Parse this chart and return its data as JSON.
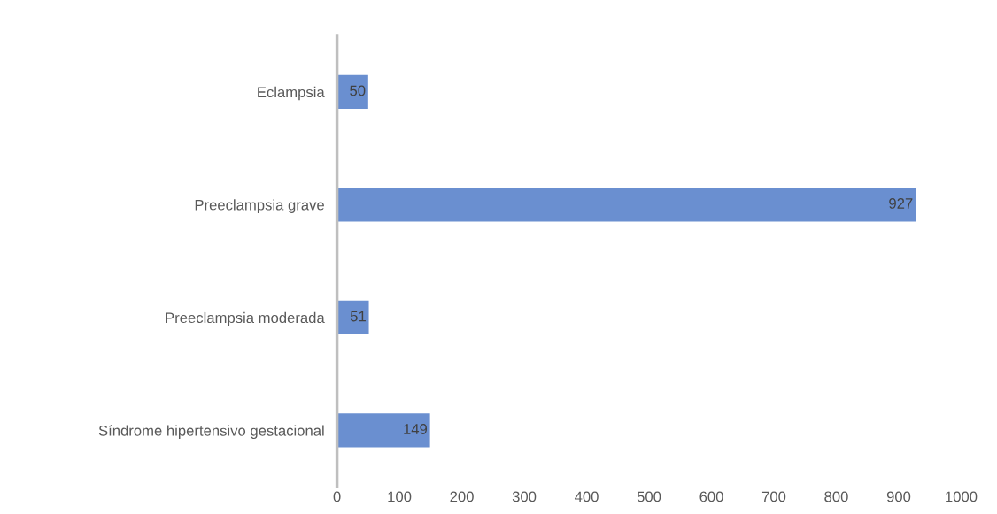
{
  "chart_data": {
    "type": "bar",
    "orientation": "horizontal",
    "categories": [
      "Eclampsia",
      "Preeclampsia grave",
      "Preeclampsia moderada",
      "Síndrome hipertensivo gestacional"
    ],
    "values": [
      50,
      927,
      51,
      149
    ],
    "color": "#6a8fd0",
    "xlim": [
      0,
      1000
    ],
    "xticks": [
      0,
      100,
      200,
      300,
      400,
      500,
      600,
      700,
      800,
      900,
      1000
    ],
    "grid": false,
    "data_labels": true
  }
}
